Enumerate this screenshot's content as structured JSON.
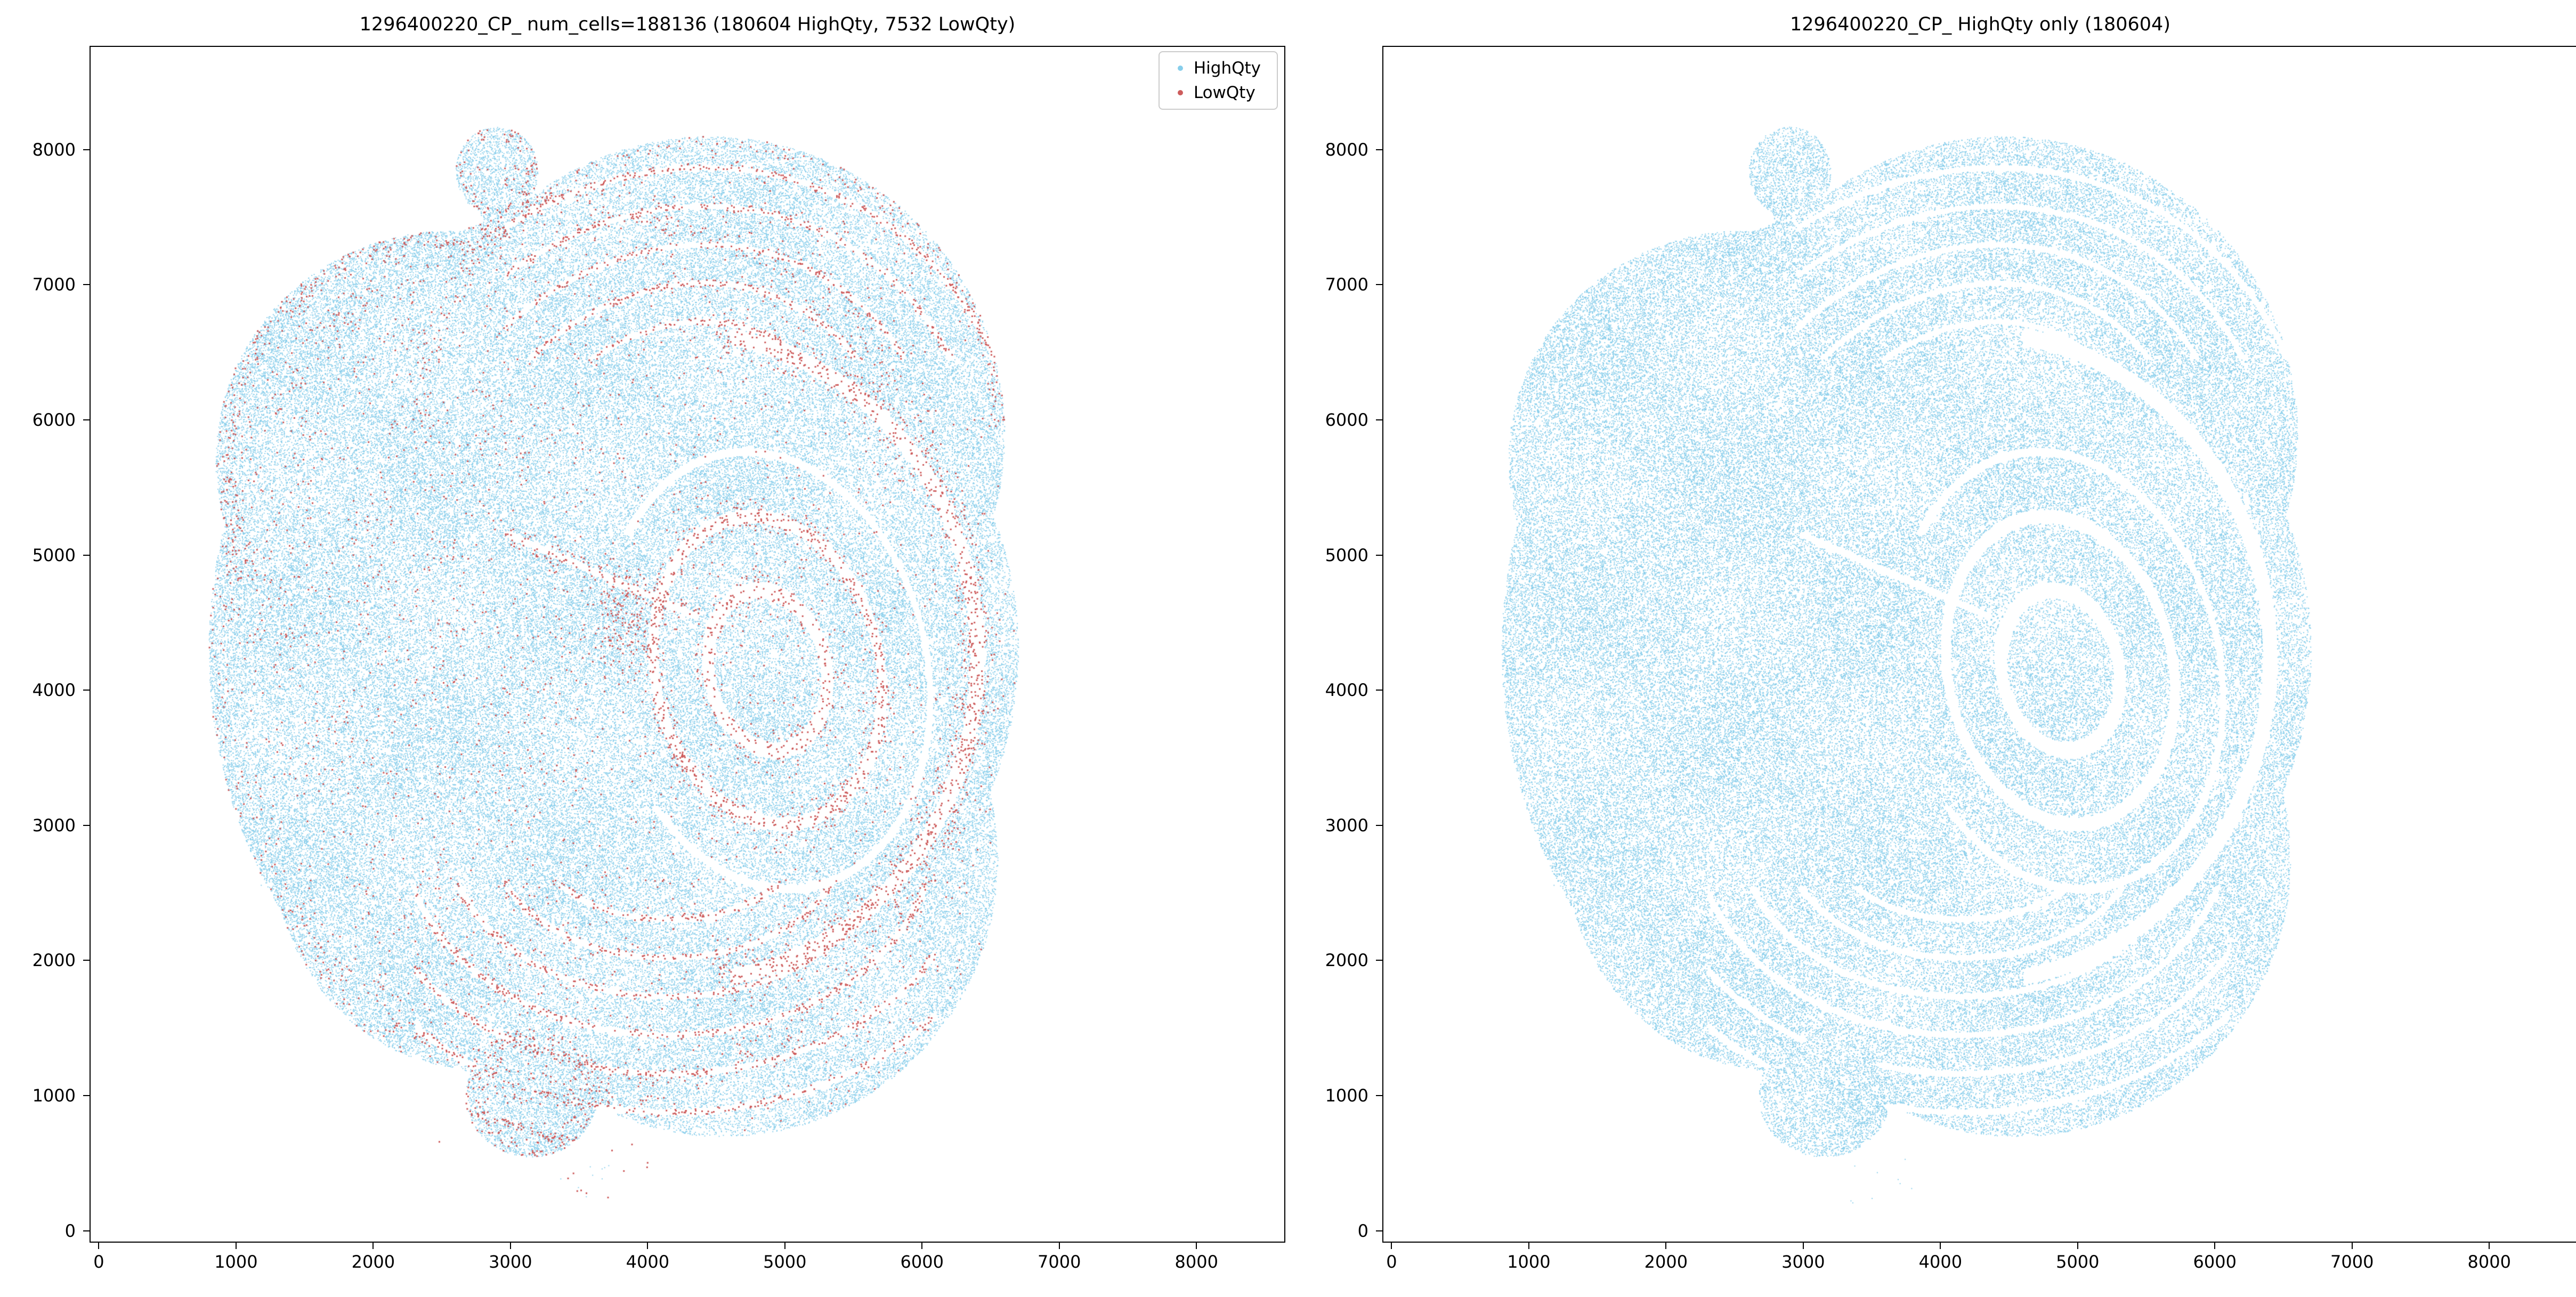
{
  "figure": {
    "background": "#ffffff",
    "kind": "two-panel scatter figure"
  },
  "chart_data": [
    {
      "panel": "left",
      "type": "scatter",
      "title": "1296400220_CP_ num_cells=188136 (180604 HighQty, 7532 LowQty)",
      "num_cells_total": 188136,
      "series": [
        {
          "name": "HighQty",
          "color": "#87CEEB",
          "count": 180604
        },
        {
          "name": "LowQty",
          "color": "#CD5C5C",
          "count": 7532
        }
      ],
      "legend": {
        "visible": true,
        "position": "upper right"
      },
      "xticks": [
        0,
        1000,
        2000,
        3000,
        4000,
        5000,
        6000,
        7000,
        8000
      ],
      "yticks": [
        0,
        1000,
        2000,
        3000,
        4000,
        5000,
        6000,
        7000,
        8000
      ],
      "xlim": [
        -60,
        8640
      ],
      "ylim": [
        -80,
        8760
      ],
      "grid": false,
      "xlabel": "",
      "ylabel": "",
      "data_extent": {
        "x": [
          800,
          6700
        ],
        "y": [
          550,
          8170
        ]
      },
      "description": "Spatial map of segmented cell centroids over a brain tissue section. HighQty cells (sky blue) fill the tissue mass; LowQty cells (red) concentrate along fold lines, ring-shaped structures and tissue boundaries. Small lobes protrude at upper-left (~2900,7850) and bottom (~3150,1000); concentric ring structure centered near (4870,4150); folded bands across the top (y>6500) and bottom (y<2500) regions."
    },
    {
      "panel": "right",
      "type": "scatter",
      "title": "1296400220_CP_ HighQty only (180604)",
      "series": [
        {
          "name": "HighQty",
          "color": "#87CEEB",
          "count": 180604
        }
      ],
      "legend": {
        "visible": false,
        "position": null
      },
      "xticks": [
        0,
        1000,
        2000,
        3000,
        4000,
        5000,
        6000,
        7000,
        8000
      ],
      "yticks": [
        0,
        1000,
        2000,
        3000,
        4000,
        5000,
        6000,
        7000,
        8000
      ],
      "xlim": [
        -60,
        8640
      ],
      "ylim": [
        -80,
        8760
      ],
      "grid": false,
      "xlabel": "",
      "ylabel": "",
      "data_extent": {
        "x": [
          800,
          6700
        ],
        "y": [
          550,
          8170
        ]
      },
      "description": "Same tissue section rendered with only the HighQty cells (sky blue); identical outline and internal fold/ring structure, no red points."
    }
  ]
}
